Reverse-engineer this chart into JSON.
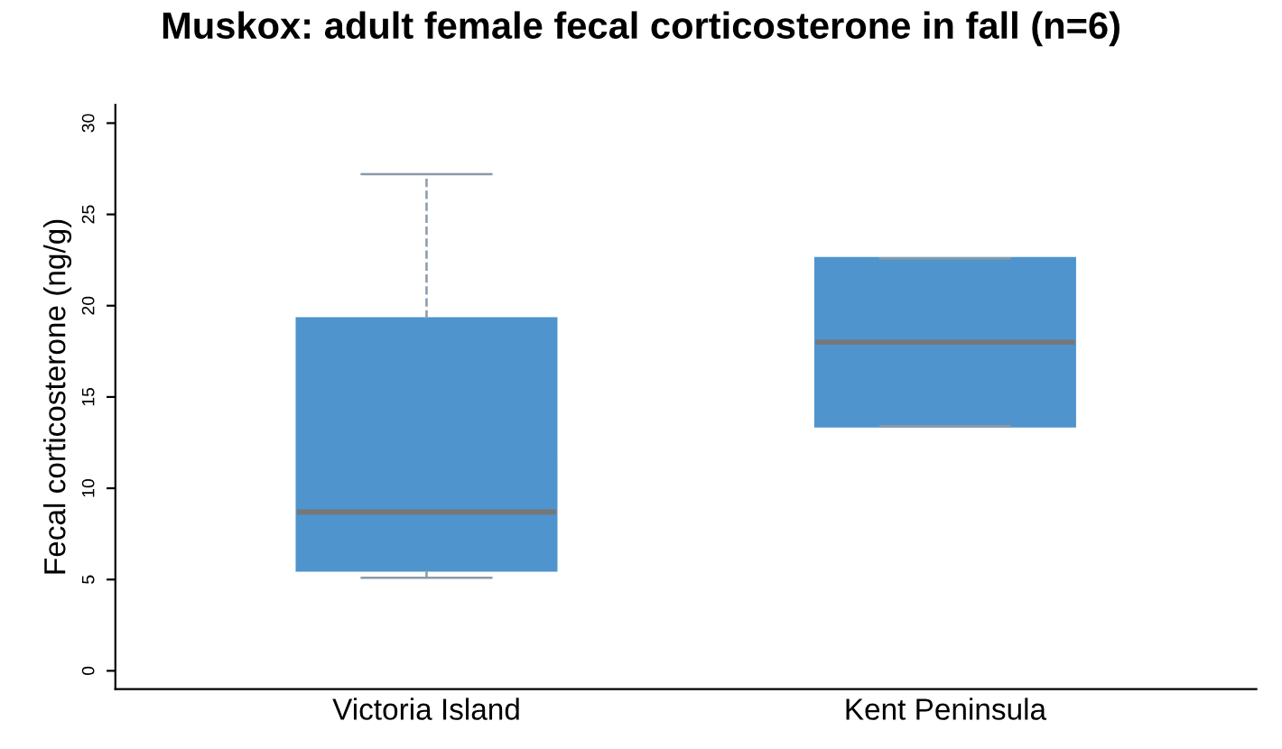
{
  "chart_data": {
    "type": "box",
    "title": "Muskox: adult female fecal corticosterone in fall (n=6)",
    "ylabel": "Fecal corticosterone (ng/g)",
    "categories": [
      "Victoria Island",
      "Kent Peninsula"
    ],
    "series": [
      {
        "color": "#4f94cd",
        "boxes": [
          {
            "low": 5.1,
            "q1": 5.5,
            "median": 8.7,
            "q3": 19.3,
            "high": 27.2
          },
          {
            "low": 13.4,
            "q1": 13.4,
            "median": 18.0,
            "q3": 22.6,
            "high": 22.6
          }
        ]
      }
    ],
    "ylim": [
      -1,
      31
    ],
    "yticks": [
      0,
      5,
      10,
      15,
      20,
      25,
      30
    ],
    "grid": false,
    "line_style": "dashed"
  }
}
